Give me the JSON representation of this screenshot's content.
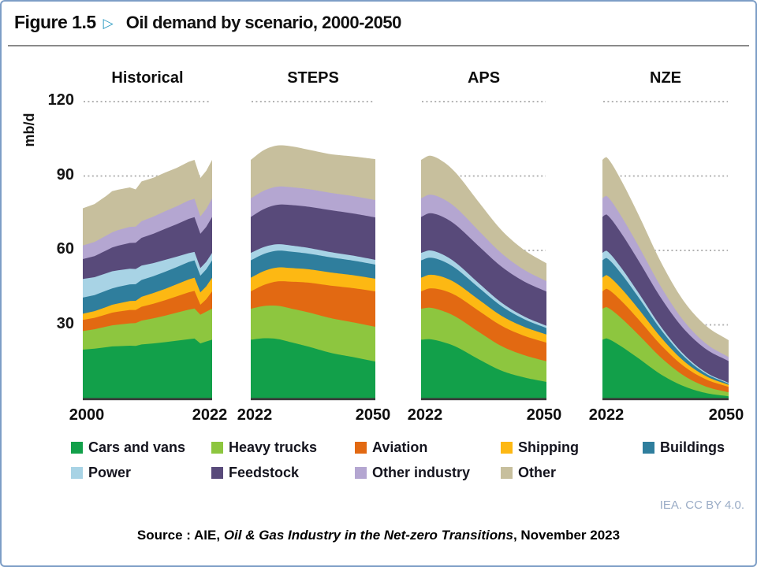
{
  "figure": {
    "label": "Figure 1.5",
    "arrow": "▷",
    "title": "Oil demand by scenario, 2000-2050"
  },
  "footer": {
    "license": "IEA. CC BY 4.0.",
    "source_prefix": "Source : AIE, ",
    "source_title": "Oil & Gas Industry in the Net-zero Transitions",
    "source_suffix": ", November 2023"
  },
  "chart_data": {
    "type": "area",
    "stacked": true,
    "title": "Oil demand by scenario, 2000-2050",
    "ylabel": "mb/d",
    "ylim": [
      0,
      120
    ],
    "gridlines": [
      120,
      90,
      60,
      30
    ],
    "grid_style": "dotted",
    "legend_position": "bottom",
    "sectors": [
      {
        "id": "cars",
        "label": "Cars and vans",
        "color": "#12A04A"
      },
      {
        "id": "trucks",
        "label": "Heavy trucks",
        "color": "#8DC63F"
      },
      {
        "id": "aviation",
        "label": "Aviation",
        "color": "#E26912"
      },
      {
        "id": "shipping",
        "label": "Shipping",
        "color": "#FDB813"
      },
      {
        "id": "buildings",
        "label": "Buildings",
        "color": "#2F7E9D"
      },
      {
        "id": "power",
        "label": "Power",
        "color": "#A8D3E5"
      },
      {
        "id": "feedstock",
        "label": "Feedstock",
        "color": "#584A7A"
      },
      {
        "id": "other_ind",
        "label": "Other industry",
        "color": "#B4A6D1"
      },
      {
        "id": "other",
        "label": "Other",
        "color": "#C7BF9D"
      }
    ],
    "panels": [
      {
        "id": "historical",
        "label": "Historical",
        "x_start": "2000",
        "x_end": "2022",
        "smooth": false,
        "years": [
          2000,
          2002,
          2004,
          2005,
          2006,
          2008,
          2009,
          2010,
          2012,
          2014,
          2016,
          2018,
          2019,
          2020,
          2021,
          2022
        ],
        "values": {
          "cars": [
            20.0,
            20.4,
            21.0,
            21.3,
            21.4,
            21.6,
            21.5,
            22.1,
            22.5,
            23.0,
            23.6,
            24.2,
            24.5,
            22.5,
            23.3,
            24.0
          ],
          "trucks": [
            7.5,
            7.8,
            8.3,
            8.5,
            8.7,
            9.0,
            9.2,
            9.6,
            10.1,
            10.7,
            11.3,
            11.9,
            12.1,
            11.6,
            12.0,
            12.5
          ],
          "aviation": [
            4.5,
            4.6,
            4.9,
            5.1,
            5.2,
            5.4,
            5.3,
            5.6,
            5.9,
            6.2,
            6.6,
            7.0,
            7.1,
            4.0,
            5.0,
            7.0
          ],
          "shipping": [
            2.5,
            2.7,
            3.0,
            3.2,
            3.3,
            3.6,
            3.7,
            4.0,
            4.3,
            4.6,
            4.9,
            5.2,
            5.3,
            5.0,
            5.2,
            5.5
          ],
          "buildings": [
            6.5,
            6.5,
            6.6,
            6.6,
            6.7,
            6.7,
            6.7,
            6.8,
            6.8,
            6.9,
            6.9,
            7.0,
            7.0,
            6.7,
            6.9,
            7.0
          ],
          "power": [
            7.5,
            7.2,
            7.0,
            6.9,
            6.7,
            6.3,
            6.1,
            5.8,
            5.3,
            4.8,
            4.2,
            3.6,
            3.4,
            3.1,
            3.0,
            3.0
          ],
          "feedstock": [
            8.0,
            8.5,
            9.2,
            9.6,
            9.9,
            10.4,
            10.6,
            11.2,
            11.8,
            12.5,
            13.1,
            13.8,
            14.0,
            13.8,
            14.1,
            14.5
          ],
          "other_ind": [
            5.5,
            5.7,
            6.0,
            6.1,
            6.3,
            6.5,
            6.5,
            6.7,
            6.9,
            7.1,
            7.2,
            7.4,
            7.4,
            7.0,
            7.2,
            7.5
          ],
          "other": [
            15.0,
            15.3,
            16.0,
            16.6,
            16.3,
            15.9,
            15.0,
            16.0,
            15.7,
            15.6,
            15.5,
            15.6,
            15.7,
            15.5,
            15.4,
            15.5
          ]
        }
      },
      {
        "id": "steps",
        "label": "STEPS",
        "x_start": "2022",
        "x_end": "2050",
        "smooth": true,
        "years": [
          2022,
          2025,
          2028,
          2031,
          2035,
          2040,
          2045,
          2050
        ],
        "values": {
          "cars": [
            24.0,
            24.6,
            24.3,
            23.0,
            21.2,
            18.7,
            17.0,
            15.2
          ],
          "trucks": [
            12.5,
            13.0,
            13.4,
            13.6,
            13.8,
            14.0,
            14.0,
            14.0
          ],
          "aviation": [
            7.0,
            8.5,
            9.8,
            10.8,
            12.0,
            13.1,
            13.8,
            14.3
          ],
          "shipping": [
            5.5,
            5.6,
            5.6,
            5.5,
            5.4,
            5.3,
            5.2,
            5.1
          ],
          "buildings": [
            7.0,
            6.9,
            6.8,
            6.6,
            6.3,
            6.1,
            5.9,
            5.7
          ],
          "power": [
            3.0,
            2.8,
            2.6,
            2.5,
            2.3,
            2.1,
            2.0,
            1.9
          ],
          "feedstock": [
            14.5,
            15.3,
            15.9,
            16.3,
            16.6,
            16.9,
            17.0,
            17.1
          ],
          "other_ind": [
            7.5,
            7.4,
            7.3,
            7.2,
            7.1,
            7.0,
            7.0,
            7.0
          ],
          "other": [
            15.5,
            16.4,
            16.6,
            16.5,
            15.9,
            15.6,
            16.0,
            16.5
          ]
        }
      },
      {
        "id": "aps",
        "label": "APS",
        "x_start": "2022",
        "x_end": "2050",
        "smooth": true,
        "years": [
          2022,
          2024,
          2027,
          2030,
          2035,
          2040,
          2045,
          2050
        ],
        "values": {
          "cars": [
            24.0,
            24.2,
            23.0,
            21.0,
            16.0,
            11.5,
            8.8,
            7.0
          ],
          "trucks": [
            12.5,
            12.7,
            12.5,
            12.0,
            11.0,
            9.9,
            9.0,
            8.3
          ],
          "aviation": [
            7.0,
            7.8,
            8.4,
            8.6,
            8.5,
            8.2,
            7.8,
            7.5
          ],
          "shipping": [
            5.5,
            5.5,
            5.3,
            5.0,
            4.5,
            4.0,
            3.6,
            3.3
          ],
          "buildings": [
            7.0,
            6.9,
            6.4,
            5.8,
            4.8,
            3.9,
            3.1,
            2.6
          ],
          "power": [
            3.0,
            2.9,
            2.6,
            2.3,
            1.8,
            1.4,
            1.1,
            0.9
          ],
          "feedstock": [
            14.5,
            15.0,
            15.2,
            15.2,
            14.9,
            14.5,
            14.1,
            13.8
          ],
          "other_ind": [
            7.5,
            7.5,
            7.3,
            7.0,
            6.2,
            5.4,
            4.7,
            4.2
          ],
          "other": [
            15.5,
            15.7,
            15.0,
            13.9,
            11.5,
            9.3,
            8.0,
            7.2
          ]
        }
      },
      {
        "id": "nze",
        "label": "NZE",
        "x_start": "2022",
        "x_end": "2050",
        "smooth": true,
        "years": [
          2022,
          2023,
          2026,
          2030,
          2035,
          2040,
          2045,
          2050
        ],
        "values": {
          "cars": [
            24.0,
            24.5,
            21.5,
            16.5,
            10.0,
            5.3,
            2.5,
            1.2
          ],
          "trucks": [
            12.5,
            12.6,
            11.5,
            9.5,
            6.8,
            4.3,
            2.6,
            1.6
          ],
          "aviation": [
            7.0,
            7.4,
            7.0,
            6.2,
            5.0,
            3.8,
            2.9,
            2.2
          ],
          "shipping": [
            5.5,
            5.5,
            5.0,
            4.2,
            3.1,
            2.1,
            1.3,
            0.8
          ],
          "buildings": [
            7.0,
            6.9,
            6.0,
            4.7,
            3.1,
            1.9,
            1.0,
            0.5
          ],
          "power": [
            3.0,
            2.9,
            2.4,
            1.8,
            1.2,
            0.8,
            0.5,
            0.3
          ],
          "feedstock": [
            14.5,
            14.6,
            14.0,
            13.0,
            11.6,
            10.3,
            9.4,
            8.8
          ],
          "other_ind": [
            7.5,
            7.5,
            6.9,
            5.9,
            4.5,
            3.2,
            2.2,
            1.6
          ],
          "other": [
            15.5,
            15.6,
            14.5,
            12.6,
            9.9,
            8.0,
            7.2,
            6.8
          ]
        }
      }
    ]
  }
}
